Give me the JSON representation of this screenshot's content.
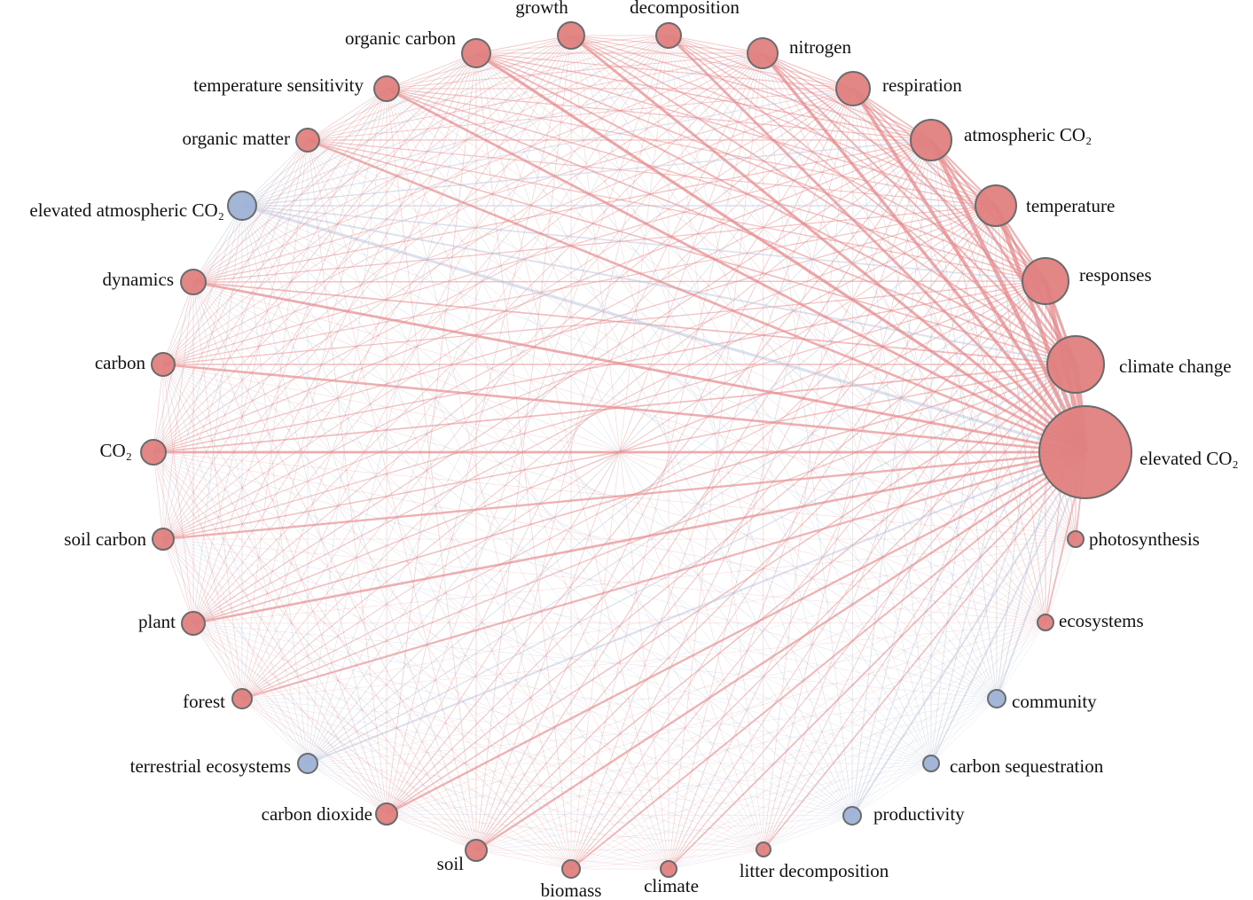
{
  "nodes": [
    {
      "label": "growth"
    },
    {
      "label": "decomposition"
    },
    {
      "label": "nitrogen"
    },
    {
      "label": "respiration"
    },
    {
      "label": "atmospheric CO₂"
    },
    {
      "label": "temperature"
    },
    {
      "label": "responses"
    },
    {
      "label": "climate change"
    },
    {
      "label": "elevated CO₂"
    },
    {
      "label": "photosynthesis"
    },
    {
      "label": "ecosystems"
    },
    {
      "label": "community"
    },
    {
      "label": "carbon sequestration"
    },
    {
      "label": "productivity"
    },
    {
      "label": "litter decomposition"
    },
    {
      "label": "climate"
    },
    {
      "label": "biomass"
    },
    {
      "label": "soil"
    },
    {
      "label": "carbon dioxide"
    },
    {
      "label": "terrestrial ecosystems"
    },
    {
      "label": "forest"
    },
    {
      "label": "plant"
    },
    {
      "label": "soil carbon"
    },
    {
      "label": "CO₂"
    },
    {
      "label": "carbon"
    },
    {
      "label": "dynamics"
    },
    {
      "label": "elevated atmospheric CO₂"
    },
    {
      "label": "organic matter"
    },
    {
      "label": "temperature sensitivity"
    },
    {
      "label": "organic carbon"
    }
  ]
}
